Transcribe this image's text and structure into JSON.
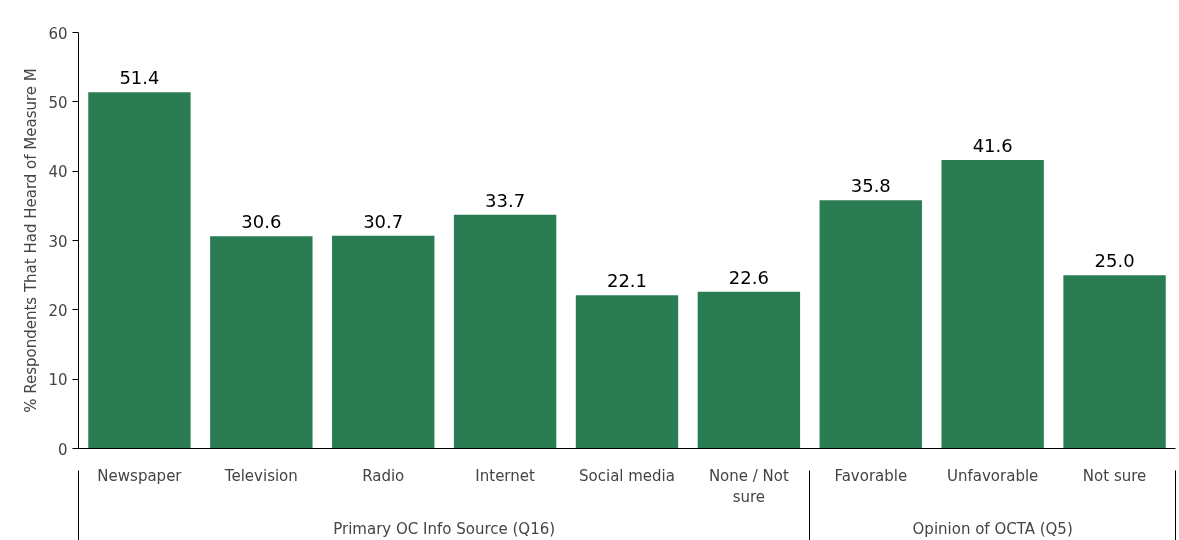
{
  "chart_data": {
    "type": "bar",
    "ylabel": "% Respondents That Had Heard of Measure M",
    "categories": [
      "Newspaper",
      "Television",
      "Radio",
      "Internet",
      "Social media",
      "None / Not sure",
      "Favorable",
      "Unfavorable",
      "Not sure"
    ],
    "values": [
      51.4,
      30.6,
      30.7,
      33.7,
      22.1,
      22.6,
      35.8,
      41.6,
      25.0
    ],
    "value_labels": [
      "51.4",
      "30.6",
      "30.7",
      "33.7",
      "22.1",
      "22.6",
      "35.8",
      "41.6",
      "25.0"
    ],
    "color": "#2a7d52",
    "ylim": [
      0,
      60
    ],
    "yticks": [
      0,
      10,
      20,
      30,
      40,
      50,
      60
    ],
    "grid": false,
    "annotations": [
      "Primary OC Info Source (Q16)",
      "Opinion of OCTA (Q5)"
    ]
  }
}
